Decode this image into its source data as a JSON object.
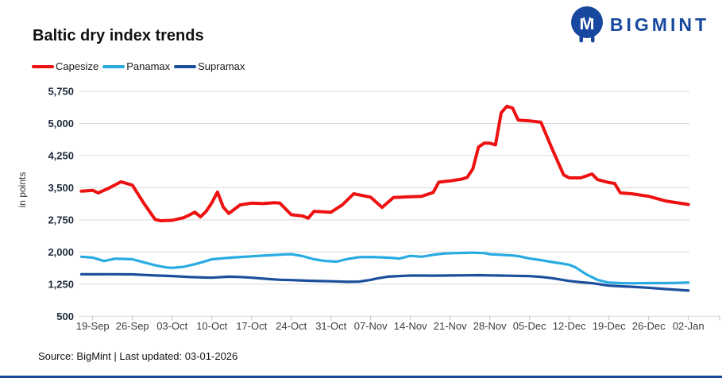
{
  "header": {
    "title": "Baltic dry index trends",
    "logo_text": "BIGMINT"
  },
  "footer": {
    "source": "Source: BigMint | Last updated: 03-01-2026"
  },
  "colors": {
    "grid": "#D9D9D9",
    "tick": "#BFBFBF",
    "y_label": "#1E2B3C",
    "x_label": "#3D3D3D",
    "logo_blue": "#17479E",
    "capesize_red": "#EE1111",
    "panamax_cyan": "#29ABE2",
    "supramax_navy": "#1B4F9C"
  },
  "chart_data": {
    "type": "line",
    "title": "Baltic dry index trends",
    "y_axis_title": "in points",
    "ylim": [
      500,
      5750
    ],
    "grid": true,
    "legend_position": "top-left",
    "y_ticks": [
      500,
      1250,
      2000,
      2750,
      3500,
      4250,
      5000,
      5750
    ],
    "y_tick_labels": [
      "500",
      "1,250",
      "2,000",
      "2,750",
      "3,500",
      "4,250",
      "5,000",
      "5,750"
    ],
    "x_tick_labels": [
      "19-Sep",
      "26-Sep",
      "03-Oct",
      "10-Oct",
      "17-Oct",
      "24-Oct",
      "31-Oct",
      "07-Nov",
      "14-Nov",
      "21-Nov",
      "28-Nov",
      "05-Dec",
      "12-Dec",
      "19-Dec",
      "26-Dec",
      "02-Jan"
    ],
    "x_unit": "days since 19-Sep",
    "series": [
      {
        "name": "Capesize",
        "color": "#EE1111",
        "stroke_width": 4,
        "points": [
          [
            -2,
            3420
          ],
          [
            0,
            3440
          ],
          [
            1,
            3380
          ],
          [
            3,
            3500
          ],
          [
            5,
            3640
          ],
          [
            7,
            3560
          ],
          [
            9,
            3140
          ],
          [
            11,
            2760
          ],
          [
            12,
            2730
          ],
          [
            14,
            2740
          ],
          [
            16,
            2800
          ],
          [
            17,
            2860
          ],
          [
            18,
            2930
          ],
          [
            19,
            2820
          ],
          [
            20,
            2950
          ],
          [
            21,
            3150
          ],
          [
            22,
            3400
          ],
          [
            23,
            3050
          ],
          [
            24,
            2900
          ],
          [
            26,
            3100
          ],
          [
            28,
            3140
          ],
          [
            30,
            3130
          ],
          [
            32,
            3150
          ],
          [
            33,
            3140
          ],
          [
            35,
            2870
          ],
          [
            37,
            2840
          ],
          [
            38,
            2790
          ],
          [
            39,
            2950
          ],
          [
            42,
            2930
          ],
          [
            44,
            3100
          ],
          [
            46,
            3360
          ],
          [
            49,
            3280
          ],
          [
            51,
            3040
          ],
          [
            53,
            3270
          ],
          [
            56,
            3290
          ],
          [
            58,
            3300
          ],
          [
            60,
            3390
          ],
          [
            61,
            3630
          ],
          [
            63,
            3660
          ],
          [
            65,
            3700
          ],
          [
            66,
            3740
          ],
          [
            67,
            3940
          ],
          [
            68,
            4450
          ],
          [
            69,
            4540
          ],
          [
            70,
            4540
          ],
          [
            71,
            4500
          ],
          [
            72,
            5250
          ],
          [
            73,
            5400
          ],
          [
            74,
            5360
          ],
          [
            75,
            5080
          ],
          [
            77,
            5060
          ],
          [
            79,
            5030
          ],
          [
            81,
            4400
          ],
          [
            83,
            3800
          ],
          [
            84,
            3730
          ],
          [
            86,
            3730
          ],
          [
            88,
            3820
          ],
          [
            89,
            3690
          ],
          [
            91,
            3620
          ],
          [
            92,
            3600
          ],
          [
            93,
            3380
          ],
          [
            95,
            3360
          ],
          [
            98,
            3300
          ],
          [
            101,
            3190
          ],
          [
            105,
            3110
          ]
        ]
      },
      {
        "name": "Panamax",
        "color": "#29ABE2",
        "stroke_width": 3.2,
        "points": [
          [
            -2,
            1890
          ],
          [
            0,
            1870
          ],
          [
            2,
            1790
          ],
          [
            4,
            1845
          ],
          [
            7,
            1830
          ],
          [
            9,
            1760
          ],
          [
            11,
            1690
          ],
          [
            13,
            1640
          ],
          [
            14,
            1630
          ],
          [
            16,
            1655
          ],
          [
            18,
            1715
          ],
          [
            20,
            1790
          ],
          [
            21,
            1830
          ],
          [
            23,
            1855
          ],
          [
            25,
            1875
          ],
          [
            28,
            1900
          ],
          [
            30,
            1915
          ],
          [
            32,
            1930
          ],
          [
            34,
            1945
          ],
          [
            35,
            1950
          ],
          [
            37,
            1905
          ],
          [
            39,
            1830
          ],
          [
            41,
            1790
          ],
          [
            42,
            1785
          ],
          [
            43,
            1775
          ],
          [
            45,
            1840
          ],
          [
            47,
            1880
          ],
          [
            49,
            1885
          ],
          [
            51,
            1875
          ],
          [
            53,
            1860
          ],
          [
            54,
            1845
          ],
          [
            56,
            1910
          ],
          [
            58,
            1890
          ],
          [
            60,
            1935
          ],
          [
            62,
            1965
          ],
          [
            64,
            1975
          ],
          [
            66,
            1980
          ],
          [
            67,
            1985
          ],
          [
            69,
            1975
          ],
          [
            70,
            1950
          ],
          [
            72,
            1935
          ],
          [
            74,
            1920
          ],
          [
            75,
            1905
          ],
          [
            77,
            1850
          ],
          [
            79,
            1810
          ],
          [
            81,
            1765
          ],
          [
            83,
            1725
          ],
          [
            84,
            1700
          ],
          [
            85,
            1650
          ],
          [
            87,
            1480
          ],
          [
            89,
            1350
          ],
          [
            90,
            1315
          ],
          [
            91,
            1285
          ],
          [
            93,
            1275
          ],
          [
            95,
            1270
          ],
          [
            98,
            1275
          ],
          [
            101,
            1275
          ],
          [
            103,
            1280
          ],
          [
            105,
            1290
          ]
        ]
      },
      {
        "name": "Supramax",
        "color": "#1B4F9C",
        "stroke_width": 3.2,
        "points": [
          [
            -2,
            1480
          ],
          [
            0,
            1480
          ],
          [
            3,
            1482
          ],
          [
            7,
            1478
          ],
          [
            9,
            1465
          ],
          [
            11,
            1452
          ],
          [
            14,
            1440
          ],
          [
            17,
            1418
          ],
          [
            19,
            1408
          ],
          [
            21,
            1400
          ],
          [
            24,
            1425
          ],
          [
            26,
            1418
          ],
          [
            28,
            1400
          ],
          [
            31,
            1370
          ],
          [
            33,
            1352
          ],
          [
            35,
            1345
          ],
          [
            38,
            1330
          ],
          [
            40,
            1322
          ],
          [
            42,
            1318
          ],
          [
            45,
            1305
          ],
          [
            47,
            1310
          ],
          [
            49,
            1350
          ],
          [
            50,
            1380
          ],
          [
            52,
            1425
          ],
          [
            55,
            1445
          ],
          [
            56,
            1450
          ],
          [
            58,
            1450
          ],
          [
            60,
            1448
          ],
          [
            63,
            1452
          ],
          [
            66,
            1456
          ],
          [
            68,
            1460
          ],
          [
            70,
            1455
          ],
          [
            72,
            1450
          ],
          [
            74,
            1445
          ],
          [
            77,
            1438
          ],
          [
            79,
            1420
          ],
          [
            81,
            1390
          ],
          [
            83,
            1345
          ],
          [
            84,
            1325
          ],
          [
            86,
            1295
          ],
          [
            88,
            1272
          ],
          [
            91,
            1215
          ],
          [
            93,
            1200
          ],
          [
            95,
            1190
          ],
          [
            98,
            1165
          ],
          [
            101,
            1135
          ],
          [
            105,
            1100
          ]
        ]
      }
    ]
  }
}
